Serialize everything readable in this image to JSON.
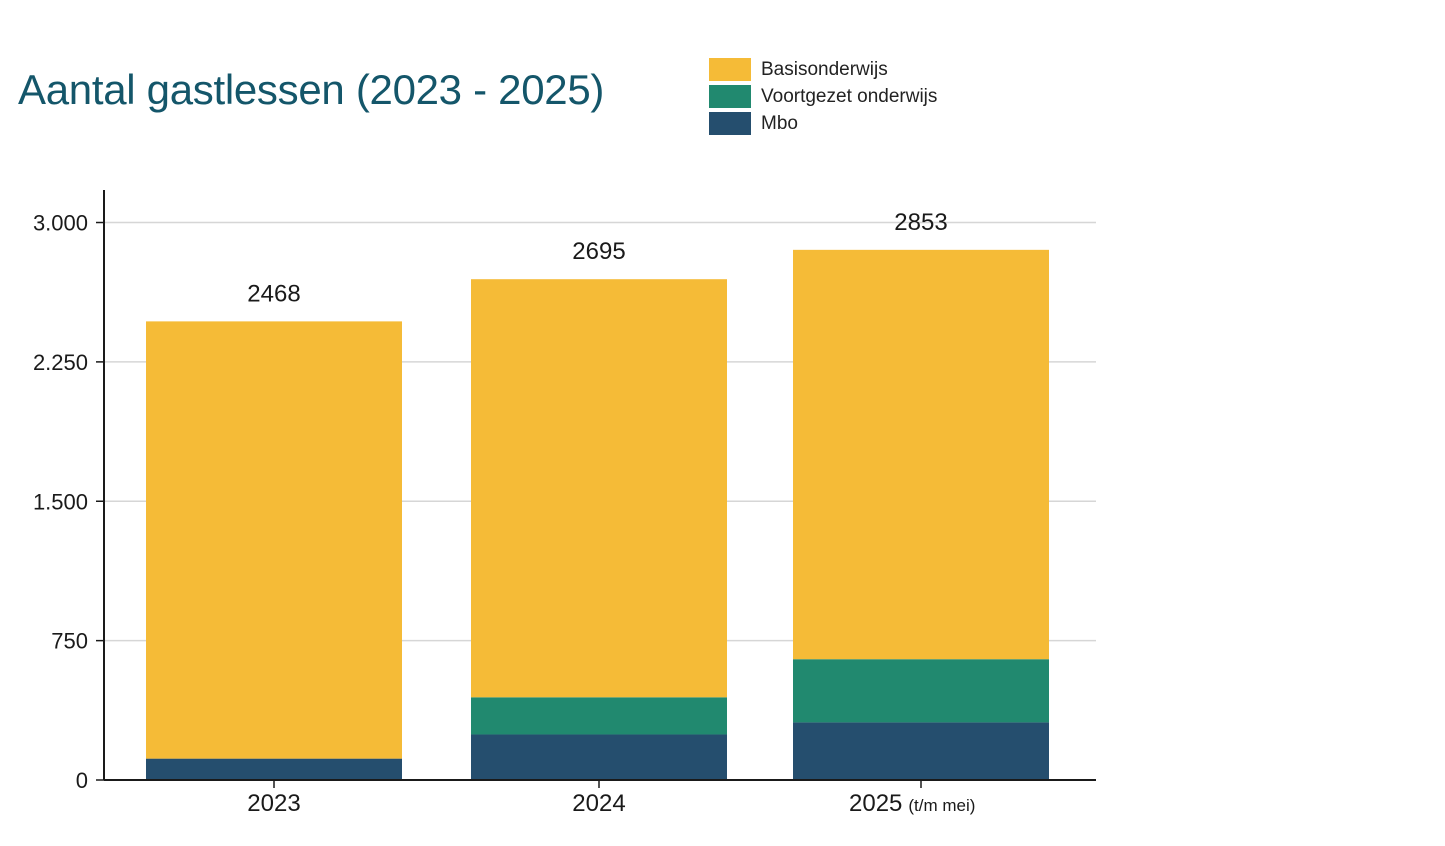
{
  "chart_data": {
    "type": "bar",
    "stacked": true,
    "title": "Aantal gastlessen (2023 - 2025)",
    "categories": [
      {
        "label": "2023",
        "note": ""
      },
      {
        "label": "2024",
        "note": ""
      },
      {
        "label": "2025",
        "note": "(t/m mei)"
      }
    ],
    "series": [
      {
        "name": "Mbo",
        "color": "#254e6e",
        "values": [
          115,
          245,
          310
        ]
      },
      {
        "name": "Voortgezet onderwijs",
        "color": "#21896f",
        "values": [
          0,
          200,
          340
        ]
      },
      {
        "name": "Basisonderwijs",
        "color": "#f5bb37",
        "values": [
          2353,
          2250,
          2203
        ]
      }
    ],
    "totals": [
      "2468",
      "2695",
      "2853"
    ],
    "legend_order": [
      2,
      1,
      0
    ],
    "y_ticks": [
      {
        "value": 0,
        "label": "0"
      },
      {
        "value": 750,
        "label": "750"
      },
      {
        "value": 1500,
        "label": "1.500"
      },
      {
        "value": 2250,
        "label": "2.250"
      },
      {
        "value": 3000,
        "label": "3.000"
      }
    ],
    "ylim": [
      0,
      3175
    ],
    "grid": true,
    "legend_position": "top"
  }
}
